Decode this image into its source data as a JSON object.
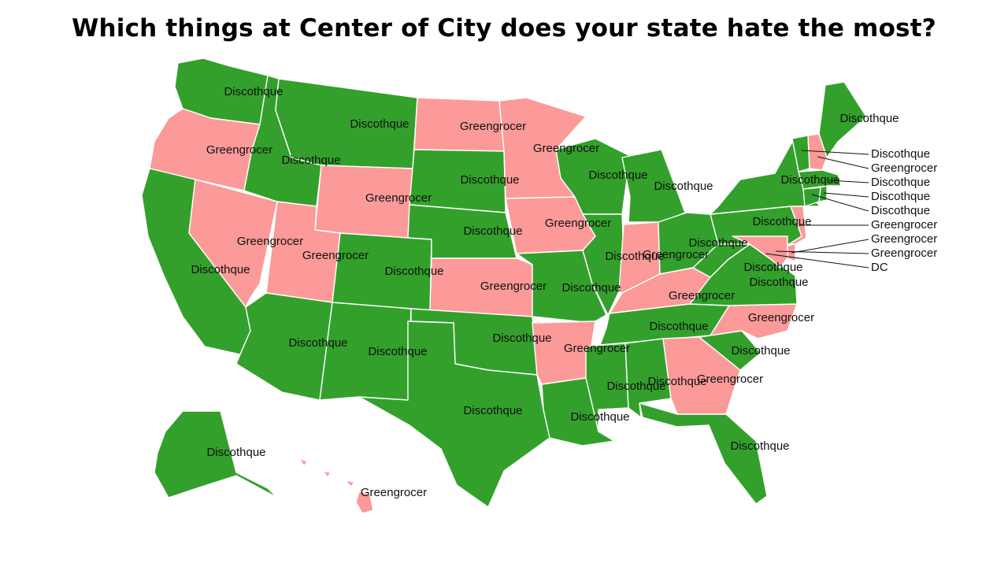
{
  "title": "Which things at Center of City does your state hate the most?",
  "colors": {
    "Discothque": "#33a02c",
    "Greengrocer": "#fb9a99",
    "border": "#ffffff"
  },
  "states": [
    {
      "code": "WA",
      "value": "Discothque"
    },
    {
      "code": "OR",
      "value": "Greengrocer"
    },
    {
      "code": "CA",
      "value": "Discothque"
    },
    {
      "code": "NV",
      "value": "Greengrocer"
    },
    {
      "code": "ID",
      "value": "Discothque"
    },
    {
      "code": "MT",
      "value": "Discothque"
    },
    {
      "code": "WY",
      "value": "Greengrocer"
    },
    {
      "code": "UT",
      "value": "Greengrocer"
    },
    {
      "code": "AZ",
      "value": "Discothque"
    },
    {
      "code": "CO",
      "value": "Discothque"
    },
    {
      "code": "NM",
      "value": "Discothque"
    },
    {
      "code": "ND",
      "value": "Greengrocer"
    },
    {
      "code": "SD",
      "value": "Discothque"
    },
    {
      "code": "NE",
      "value": "Discothque"
    },
    {
      "code": "KS",
      "value": "Greengrocer"
    },
    {
      "code": "OK",
      "value": "Discothque"
    },
    {
      "code": "TX",
      "value": "Discothque"
    },
    {
      "code": "MN",
      "value": "Greengrocer"
    },
    {
      "code": "IA",
      "value": "Greengrocer"
    },
    {
      "code": "MO",
      "value": "Discothque"
    },
    {
      "code": "AR",
      "value": "Greengrocer"
    },
    {
      "code": "LA",
      "value": "Discothque"
    },
    {
      "code": "WI",
      "value": "Discothque"
    },
    {
      "code": "IL",
      "value": "Discothque"
    },
    {
      "code": "MI",
      "value": "Discothque"
    },
    {
      "code": "IN",
      "value": "Greengrocer"
    },
    {
      "code": "OH",
      "value": "Discothque"
    },
    {
      "code": "KY",
      "value": "Greengrocer"
    },
    {
      "code": "TN",
      "value": "Discothque"
    },
    {
      "code": "MS",
      "value": "Discothque"
    },
    {
      "code": "AL",
      "value": "Discothque"
    },
    {
      "code": "GA",
      "value": "Greengrocer"
    },
    {
      "code": "FL",
      "value": "Discothque"
    },
    {
      "code": "SC",
      "value": "Discothque"
    },
    {
      "code": "NC",
      "value": "Greengrocer"
    },
    {
      "code": "VA",
      "value": "Discothque"
    },
    {
      "code": "WV",
      "value": "Discothque"
    },
    {
      "code": "PA",
      "value": "Discothque"
    },
    {
      "code": "NY",
      "value": "Discothque"
    },
    {
      "code": "ME",
      "value": "Discothque"
    },
    {
      "code": "AK",
      "value": "Discothque"
    },
    {
      "code": "HI",
      "value": "Greengrocer"
    },
    {
      "code": "VT",
      "value": "Discothque"
    },
    {
      "code": "NH",
      "value": "Greengrocer"
    },
    {
      "code": "MA",
      "value": "Discothque"
    },
    {
      "code": "RI",
      "value": "Discothque"
    },
    {
      "code": "CT",
      "value": "Discothque"
    },
    {
      "code": "NJ",
      "value": "Greengrocer"
    },
    {
      "code": "DE",
      "value": "Greengrocer"
    },
    {
      "code": "MD",
      "value": "Greengrocer"
    },
    {
      "code": "DC",
      "value": "DC"
    }
  ]
}
